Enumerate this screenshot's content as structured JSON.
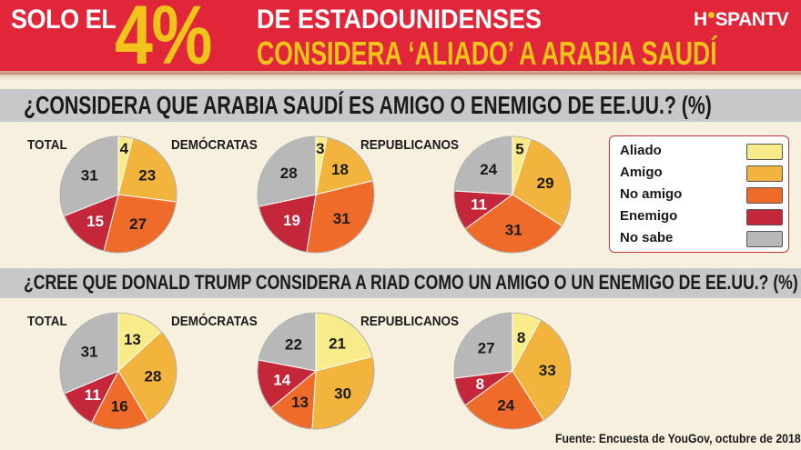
{
  "header": {
    "title_prefix": "SOLO EL",
    "title_big": "4%",
    "title_line1": "DE ESTADOUNIDENSES",
    "title_line2": "CONSIDERA ‘ALIADO’ A ARABIA SAUDÍ",
    "logo_left": "H",
    "logo_right": "SPANTV"
  },
  "questions": [
    "¿CONSIDERA QUE ARABIA SAUDÍ ES AMIGO O ENEMIGO DE EE.UU.? (%)",
    "¿CREE QUE DONALD TRUMP CONSIDERA A RIAD COMO UN AMIGO O UN ENEMIGO DE EE.UU.? (%)"
  ],
  "groups": [
    "TOTAL",
    "DEMÓCRATAS",
    "REPUBLICANOS"
  ],
  "legend": [
    {
      "label": "Aliado",
      "color": "#f8ec8a"
    },
    {
      "label": "Amigo",
      "color": "#f2b43c"
    },
    {
      "label": "No amigo",
      "color": "#ee6b2a"
    },
    {
      "label": "Enemigo",
      "color": "#c4263a"
    },
    {
      "label": "No sabe",
      "color": "#b8b8b8"
    }
  ],
  "source": "Fuente: Encuesta de YouGov, octubre de 2018",
  "chart_data": [
    {
      "type": "pie",
      "question": 1,
      "group": "TOTAL",
      "labels": [
        "Aliado",
        "Amigo",
        "No amigo",
        "Enemigo",
        "No sabe"
      ],
      "values": [
        4,
        23,
        27,
        15,
        31
      ]
    },
    {
      "type": "pie",
      "question": 1,
      "group": "DEMÓCRATAS",
      "labels": [
        "Aliado",
        "Amigo",
        "No amigo",
        "Enemigo",
        "No sabe"
      ],
      "values": [
        3,
        18,
        31,
        19,
        28
      ]
    },
    {
      "type": "pie",
      "question": 1,
      "group": "REPUBLICANOS",
      "labels": [
        "Aliado",
        "Amigo",
        "No amigo",
        "Enemigo",
        "No sabe"
      ],
      "values": [
        5,
        29,
        31,
        11,
        24
      ]
    },
    {
      "type": "pie",
      "question": 2,
      "group": "TOTAL",
      "labels": [
        "Aliado",
        "Amigo",
        "No amigo",
        "Enemigo",
        "No sabe"
      ],
      "values": [
        13,
        28,
        16,
        11,
        31
      ]
    },
    {
      "type": "pie",
      "question": 2,
      "group": "DEMÓCRATAS",
      "labels": [
        "Aliado",
        "Amigo",
        "No amigo",
        "Enemigo",
        "No sabe"
      ],
      "values": [
        21,
        30,
        13,
        14,
        22
      ]
    },
    {
      "type": "pie",
      "question": 2,
      "group": "REPUBLICANOS",
      "labels": [
        "Aliado",
        "Amigo",
        "No amigo",
        "Enemigo",
        "No sabe"
      ],
      "values": [
        8,
        33,
        24,
        8,
        27
      ]
    }
  ]
}
